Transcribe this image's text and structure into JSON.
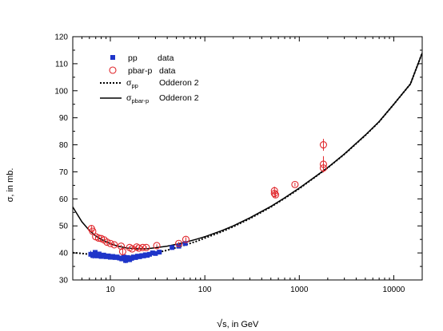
{
  "chart_data": {
    "type": "scatter",
    "xscale": "log",
    "xlim": [
      4,
      20000
    ],
    "ylim": [
      30,
      120
    ],
    "x_ticks": [
      10,
      100,
      1000,
      10000
    ],
    "x_tick_labels": [
      "10",
      "100",
      "1000",
      "10000"
    ],
    "y_ticks": [
      30,
      40,
      50,
      60,
      70,
      80,
      90,
      100,
      110,
      120
    ],
    "y_tick_labels": [
      "30",
      "40",
      "50",
      "60",
      "70",
      "80",
      "90",
      "100",
      "110",
      "120"
    ],
    "xlabel": {
      "prefix": "√",
      "text": "s, in GeV"
    },
    "ylabel": "σ, in mb.",
    "grid": false,
    "legend": {
      "position": "top-left",
      "entries": [
        {
          "key": "pp",
          "name": "pp",
          "note": "data",
          "marker": "filled-square",
          "color": "#1f35c9"
        },
        {
          "key": "pbarp",
          "name": "pbar-p",
          "note": "data",
          "marker": "open-circle",
          "color": "#e0262b"
        },
        {
          "key": "pp_fit",
          "name": "σ",
          "sub": "pp",
          "note": "Odderon 2",
          "style": "dotted",
          "color": "#000000"
        },
        {
          "key": "pbarp_fit",
          "name": "σ",
          "sub": "pbar-p",
          "note": "Odderon 2",
          "style": "solid",
          "color": "#000000"
        }
      ]
    },
    "series": [
      {
        "key": "pp",
        "points": [
          [
            6.2,
            39.5,
            1.3
          ],
          [
            6.6,
            39.0,
            1.1
          ],
          [
            6.9,
            40.2,
            0.8
          ],
          [
            7.2,
            38.9,
            0.8
          ],
          [
            7.6,
            39.6,
            0.7
          ],
          [
            8.0,
            38.7,
            0.6
          ],
          [
            8.5,
            39.2,
            0.5
          ],
          [
            9.0,
            38.6,
            0.5
          ],
          [
            9.5,
            38.9,
            0.5
          ],
          [
            10.0,
            38.4,
            0.5
          ],
          [
            10.6,
            38.7,
            0.4
          ],
          [
            11.2,
            38.3,
            0.4
          ],
          [
            11.8,
            38.5,
            0.4
          ],
          [
            12.5,
            38.1,
            0.4
          ],
          [
            13.2,
            37.8,
            0.4
          ],
          [
            13.9,
            38.5,
            0.4
          ],
          [
            14.5,
            37.2,
            1.0
          ],
          [
            15.2,
            38.3,
            0.4
          ],
          [
            16.0,
            37.5,
            0.4
          ],
          [
            16.8,
            38.0,
            0.4
          ],
          [
            17.6,
            38.5,
            0.4
          ],
          [
            18.5,
            38.3,
            0.4
          ],
          [
            19.4,
            38.8,
            0.4
          ],
          [
            20.4,
            38.6,
            0.4
          ],
          [
            21.5,
            39.0,
            0.4
          ],
          [
            22.5,
            38.9,
            0.4
          ],
          [
            23.5,
            39.3,
            0.4
          ],
          [
            24.6,
            39.1,
            0.4
          ],
          [
            26.0,
            39.5,
            0.4
          ],
          [
            28.0,
            40.0,
            0.4
          ],
          [
            30.0,
            39.8,
            0.4
          ],
          [
            33.0,
            40.3,
            0.4
          ],
          [
            45.0,
            42.0,
            0.6
          ],
          [
            53.0,
            42.5,
            0.6
          ],
          [
            62.0,
            43.5,
            0.6
          ]
        ]
      },
      {
        "key": "pbarp",
        "points": [
          [
            6.3,
            49.0,
            1.0
          ],
          [
            6.5,
            48.0,
            0.8
          ],
          [
            7.0,
            46.0,
            0.6
          ],
          [
            7.5,
            45.5,
            0.6
          ],
          [
            8.0,
            45.3,
            0.5
          ],
          [
            8.6,
            44.8,
            0.5
          ],
          [
            9.2,
            44.0,
            0.5
          ],
          [
            10.0,
            43.5,
            0.5
          ],
          [
            11.0,
            43.0,
            0.5
          ],
          [
            13.0,
            42.5,
            0.5
          ],
          [
            13.5,
            40.5,
            1.0
          ],
          [
            16.0,
            42.0,
            0.5
          ],
          [
            17.0,
            41.5,
            0.5
          ],
          [
            19.0,
            42.2,
            0.5
          ],
          [
            20.0,
            41.8,
            0.5
          ],
          [
            22.0,
            42.0,
            0.5
          ],
          [
            24.0,
            42.0,
            0.5
          ],
          [
            31.0,
            42.7,
            0.5
          ],
          [
            53.0,
            43.5,
            0.6
          ],
          [
            63.0,
            45.0,
            0.8
          ],
          [
            546.0,
            63.0,
            1.5
          ],
          [
            546.0,
            62.0,
            1.0
          ],
          [
            560.0,
            61.5,
            1.0
          ],
          [
            900.0,
            65.3,
            0.7
          ],
          [
            1800.0,
            80.0,
            2.2
          ],
          [
            1800.0,
            72.8,
            3.0
          ],
          [
            1800.0,
            71.4,
            1.5
          ]
        ]
      },
      {
        "key": "pp_fit",
        "points": [
          [
            4,
            40.1
          ],
          [
            5,
            39.8
          ],
          [
            6,
            39.5
          ],
          [
            7,
            39.2
          ],
          [
            8,
            39.0
          ],
          [
            10,
            38.7
          ],
          [
            12,
            38.6
          ],
          [
            15,
            38.6
          ],
          [
            20,
            39.0
          ],
          [
            25,
            39.5
          ],
          [
            30,
            40.0
          ],
          [
            40,
            41.0
          ],
          [
            50,
            42.0
          ],
          [
            60,
            42.8
          ],
          [
            80,
            44.2
          ],
          [
            100,
            45.5
          ],
          [
            150,
            47.8
          ],
          [
            200,
            49.7
          ],
          [
            300,
            52.7
          ],
          [
            500,
            57.0
          ],
          [
            700,
            60.2
          ],
          [
            1000,
            63.8
          ],
          [
            1500,
            68.3
          ],
          [
            2000,
            71.5
          ],
          [
            3000,
            76.5
          ],
          [
            5000,
            83.5
          ],
          [
            7000,
            88.5
          ],
          [
            10000,
            95.0
          ],
          [
            15000,
            102.5
          ],
          [
            20000,
            114.0
          ]
        ]
      },
      {
        "key": "pbarp_fit",
        "points": [
          [
            4,
            57.0
          ],
          [
            5,
            51.5
          ],
          [
            6,
            48.3
          ],
          [
            7,
            46.3
          ],
          [
            8,
            45.0
          ],
          [
            10,
            43.4
          ],
          [
            12,
            42.5
          ],
          [
            15,
            41.8
          ],
          [
            20,
            41.5
          ],
          [
            25,
            41.6
          ],
          [
            30,
            41.9
          ],
          [
            40,
            42.5
          ],
          [
            50,
            43.2
          ],
          [
            60,
            43.8
          ],
          [
            80,
            45.0
          ],
          [
            100,
            46.0
          ],
          [
            150,
            48.2
          ],
          [
            200,
            50.0
          ],
          [
            300,
            53.0
          ],
          [
            500,
            57.2
          ],
          [
            700,
            60.4
          ],
          [
            1000,
            64.0
          ],
          [
            1500,
            68.4
          ],
          [
            2000,
            71.6
          ],
          [
            3000,
            76.6
          ],
          [
            5000,
            83.6
          ],
          [
            7000,
            88.6
          ],
          [
            10000,
            95.0
          ],
          [
            15000,
            102.5
          ],
          [
            20000,
            114.0
          ]
        ]
      }
    ]
  }
}
